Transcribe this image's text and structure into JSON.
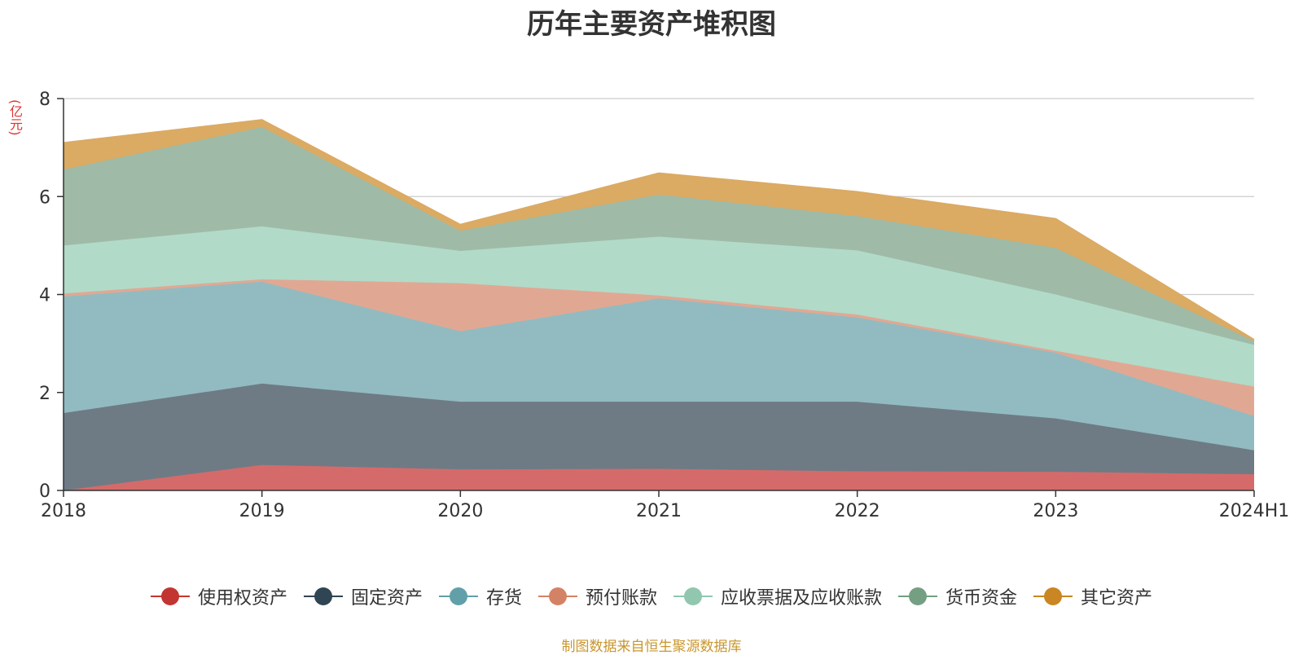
{
  "chart_data": {
    "type": "area",
    "title": "历年主要资产堆积图",
    "ylabel": "(亿元)",
    "ylim": [
      0,
      8
    ],
    "yticks": [
      0,
      2,
      4,
      6,
      8
    ],
    "grid": true,
    "legend_position": "bottom",
    "categories": [
      "2018",
      "2019",
      "2020",
      "2021",
      "2022",
      "2023",
      "2024H1"
    ],
    "series": [
      {
        "name": "使用权资产",
        "color": "#c23531",
        "fill": "#d46b6a",
        "values": [
          0.0,
          0.52,
          0.43,
          0.44,
          0.39,
          0.38,
          0.33
        ]
      },
      {
        "name": "固定资产",
        "color": "#2f4554",
        "fill": "#6e7b85",
        "values": [
          1.58,
          1.66,
          1.38,
          1.37,
          1.42,
          1.09,
          0.49
        ]
      },
      {
        "name": "存货",
        "color": "#61a0a8",
        "fill": "#92bbc1",
        "values": [
          2.38,
          2.08,
          1.44,
          2.11,
          1.72,
          1.34,
          0.7
        ]
      },
      {
        "name": "预付账款",
        "color": "#d48265",
        "fill": "#e0a893",
        "values": [
          0.06,
          0.05,
          0.98,
          0.06,
          0.06,
          0.04,
          0.6
        ]
      },
      {
        "name": "应收票据及应收账款",
        "color": "#91c7ae",
        "fill": "#b2dac8",
        "values": [
          0.98,
          1.08,
          0.66,
          1.2,
          1.31,
          1.15,
          0.85
        ]
      },
      {
        "name": "货币资金",
        "color": "#749f83",
        "fill": "#9fbba7",
        "values": [
          1.55,
          2.03,
          0.41,
          0.86,
          0.7,
          0.95,
          0.08
        ]
      },
      {
        "name": "其它资产",
        "color": "#ca8622",
        "fill": "#dbaa63",
        "values": [
          0.55,
          0.15,
          0.13,
          0.44,
          0.5,
          0.6,
          0.03
        ]
      }
    ]
  },
  "footer": {
    "source": "制图数据来自恒生聚源数据库"
  }
}
